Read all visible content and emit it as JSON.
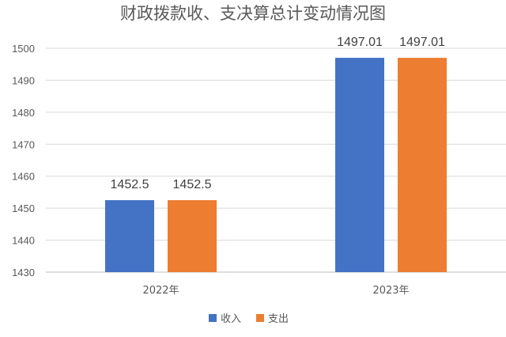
{
  "chart_data": {
    "type": "bar",
    "title": "财政拨款收、支决算总计变动情况图",
    "categories": [
      "2022年",
      "2023年"
    ],
    "series": [
      {
        "name": "收入",
        "values": [
          1452.5,
          1497.01
        ],
        "labels": [
          "1452.5",
          "1497.01"
        ],
        "color": "#4472C4"
      },
      {
        "name": "支出",
        "values": [
          1452.5,
          1497.01
        ],
        "labels": [
          "1452.5",
          "1497.01"
        ],
        "color": "#ED7D31"
      }
    ],
    "ylim": [
      1430,
      1500
    ],
    "yticks": [
      "1430",
      "1440",
      "1450",
      "1460",
      "1470",
      "1480",
      "1490",
      "1500"
    ],
    "grid": true,
    "legend_position": "bottom",
    "xlabel": "",
    "ylabel": ""
  }
}
